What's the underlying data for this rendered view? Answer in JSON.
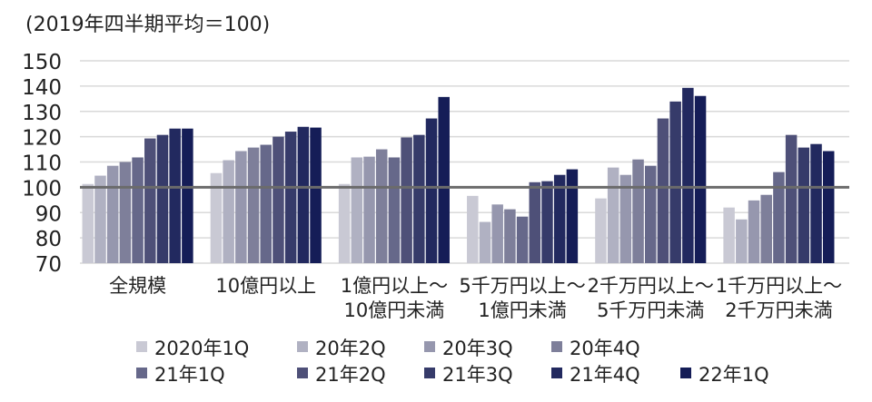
{
  "chart_data": {
    "type": "bar",
    "title": "(2019年四半期平均＝100)",
    "xlabel": "",
    "ylabel": "",
    "ylim": [
      70,
      150
    ],
    "yticks": [
      70,
      80,
      90,
      100,
      110,
      120,
      130,
      140,
      150
    ],
    "reference_line": 100,
    "grid": true,
    "legend_position": "bottom",
    "categories": [
      [
        "全規模"
      ],
      [
        "10億円以上"
      ],
      [
        "1億円以上～",
        "10億円未満"
      ],
      [
        "5千万円以上～",
        "1億円未満"
      ],
      [
        "2千万円以上～",
        "5千万円未満"
      ],
      [
        "1千万円以上～",
        "2千万円未満"
      ]
    ],
    "series": [
      {
        "name": "2020年1Q",
        "color": "#c9c9d4",
        "values": [
          101.3,
          105.6,
          101.3,
          96.6,
          95.6,
          92.0
        ]
      },
      {
        "name": "20年2Q",
        "color": "#b0b1c2",
        "values": [
          104.6,
          110.7,
          111.8,
          86.3,
          107.8,
          87.3
        ]
      },
      {
        "name": "20年3Q",
        "color": "#9697ae",
        "values": [
          108.5,
          114.3,
          112.1,
          93.2,
          104.9,
          94.8
        ]
      },
      {
        "name": "20年4Q",
        "color": "#7e7f9a",
        "values": [
          110.0,
          115.7,
          115.0,
          91.3,
          111.0,
          97.0
        ]
      },
      {
        "name": "21年1Q",
        "color": "#66688a",
        "values": [
          111.8,
          116.8,
          111.8,
          88.4,
          108.5,
          106.0
        ]
      },
      {
        "name": "21年2Q",
        "color": "#4e5078",
        "values": [
          119.3,
          120.0,
          119.7,
          102.0,
          127.2,
          120.7
        ]
      },
      {
        "name": "21年3Q",
        "color": "#363b6a",
        "values": [
          120.7,
          122.0,
          120.7,
          102.4,
          133.9,
          115.7
        ]
      },
      {
        "name": "21年4Q",
        "color": "#22295f",
        "values": [
          123.2,
          123.9,
          127.2,
          104.9,
          139.3,
          117.1
        ]
      },
      {
        "name": "22年1Q",
        "color": "#151d57",
        "values": [
          123.2,
          123.6,
          135.7,
          107.1,
          136.1,
          114.3
        ]
      }
    ]
  }
}
